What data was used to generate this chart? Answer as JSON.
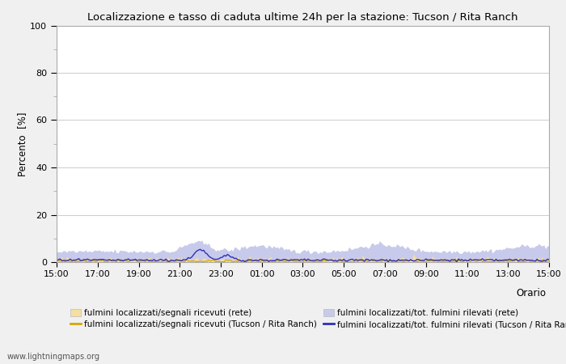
{
  "title": "Localizzazione e tasso di caduta ultime 24h per la stazione: Tucson / Rita Ranch",
  "ylabel": "Percento  [%]",
  "xlabel": "Orario",
  "ylim": [
    0,
    100
  ],
  "yticks": [
    0,
    20,
    40,
    60,
    80,
    100
  ],
  "xtick_labels": [
    "15:00",
    "17:00",
    "19:00",
    "21:00",
    "23:00",
    "01:00",
    "03:00",
    "05:00",
    "07:00",
    "09:00",
    "11:00",
    "13:00",
    "15:00"
  ],
  "watermark": "www.lightningmaps.org",
  "fill_rete_color": "#f5dfa0",
  "fill_tucson_color": "#c8caeb",
  "line_rete_color": "#d4a800",
  "line_tucson_color": "#3030b8",
  "legend_labels": [
    "fulmini localizzati/segnali ricevuti (rete)",
    "fulmini localizzati/segnali ricevuti (Tucson / Rita Ranch)",
    "fulmini localizzati/tot. fulmini rilevati (rete)",
    "fulmini localizzati/tot. fulmini rilevati (Tucson / Rita Ranch)"
  ],
  "background_color": "#f0f0f0",
  "plot_bg_color": "#ffffff",
  "grid_color": "#cccccc",
  "spine_color": "#aaaaaa"
}
